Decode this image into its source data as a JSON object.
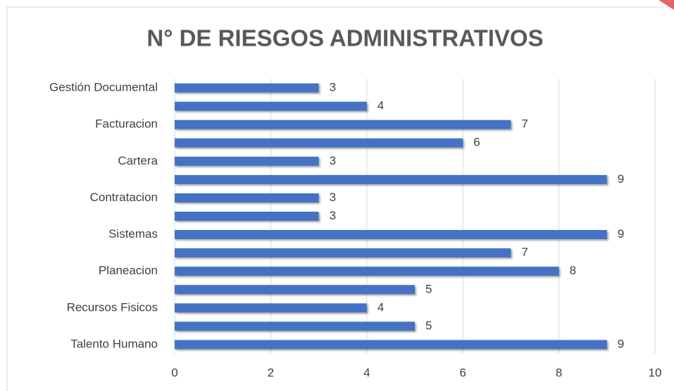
{
  "chart_data": {
    "type": "bar",
    "orientation": "horizontal",
    "title": "N° DE RIESGOS ADMINISTRATIVOS",
    "categories": [
      "Gestión Documental",
      null,
      "Facturacion",
      null,
      "Cartera",
      null,
      "Contratacion",
      null,
      "Sistemas",
      null,
      "Planeacion",
      null,
      "Recursos Fisicos",
      null,
      "Talento Humano"
    ],
    "values": [
      3,
      4,
      7,
      6,
      3,
      9,
      3,
      3,
      9,
      7,
      8,
      5,
      4,
      5,
      9
    ],
    "color": "#4472c4",
    "xlim": [
      0,
      10
    ],
    "xticks": [
      0,
      2,
      4,
      6,
      8,
      10
    ],
    "grid": true
  }
}
